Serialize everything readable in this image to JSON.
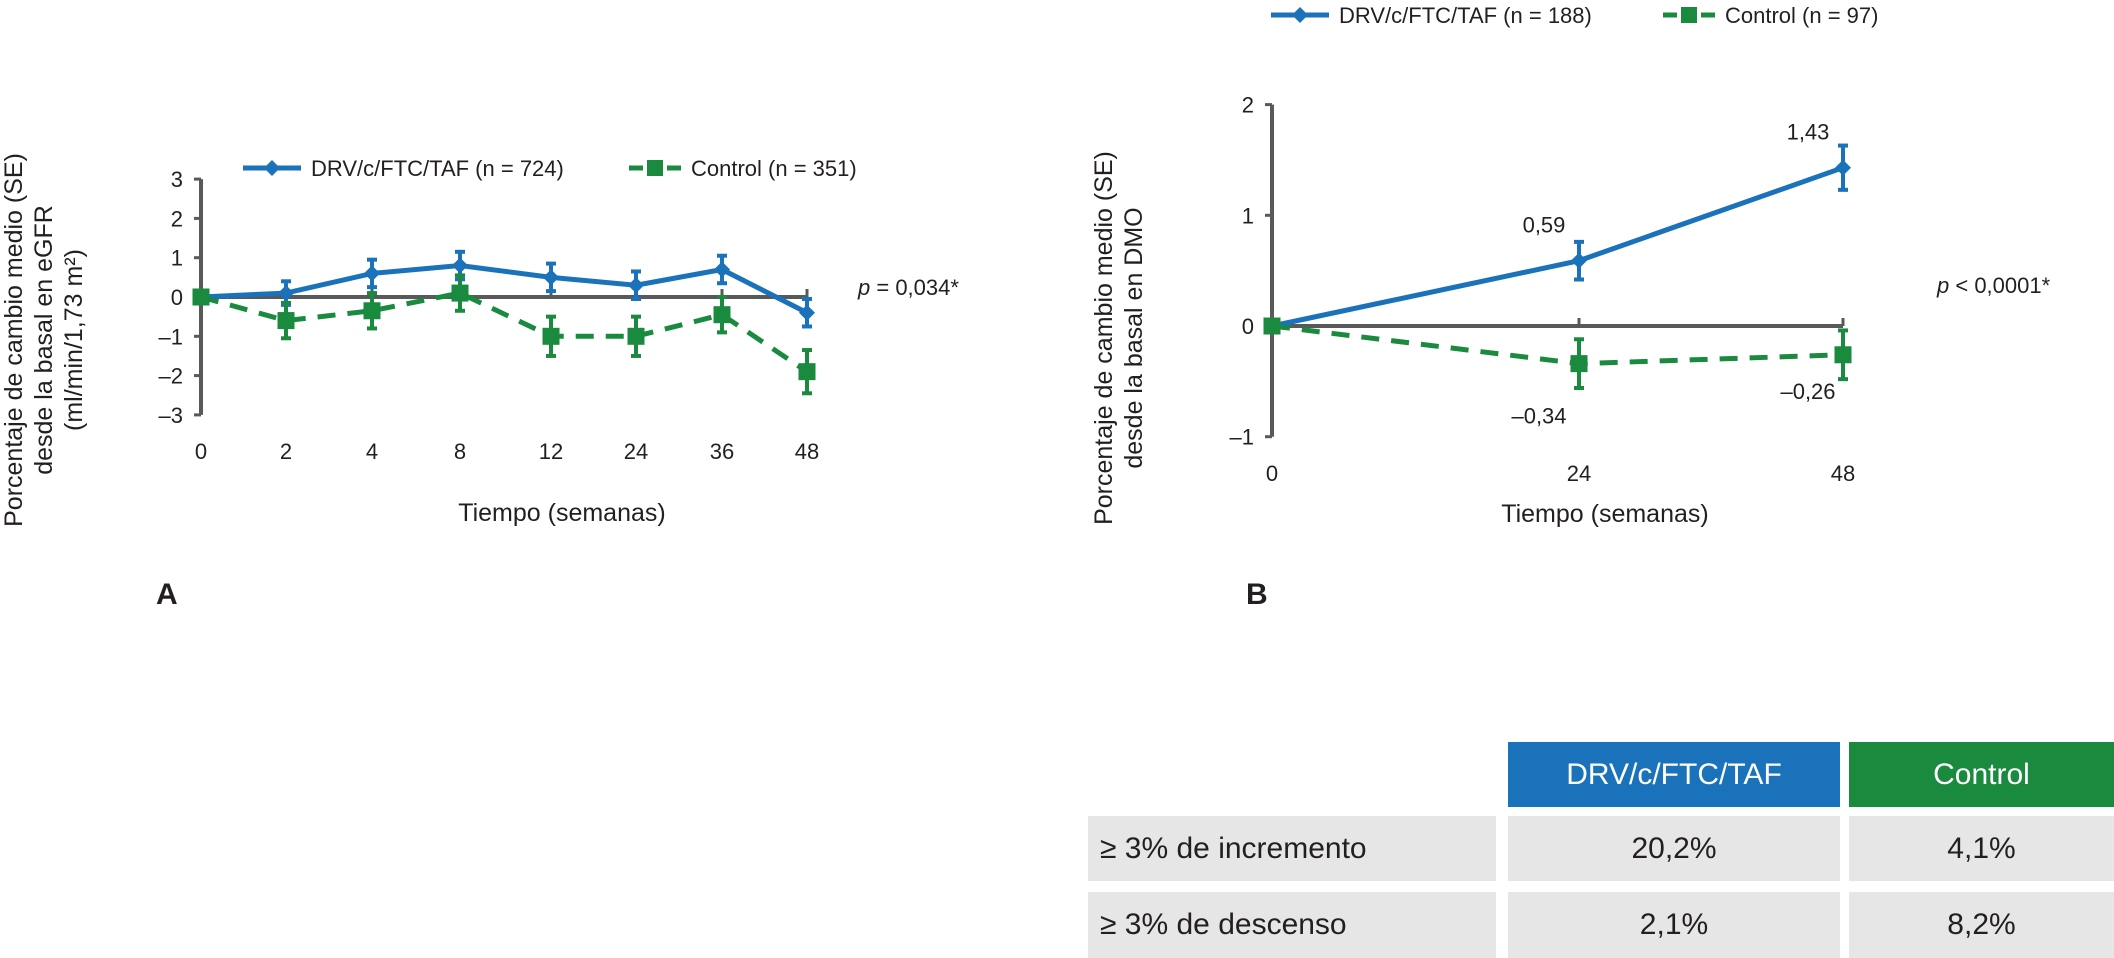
{
  "colors": {
    "drv": "#1a72bb",
    "control": "#1a8a3f",
    "axis": "#58595b",
    "cell": "#e6e6e6"
  },
  "panel_labels": {
    "a": "A",
    "b": "B"
  },
  "chart_data": [
    {
      "type": "line",
      "panel": "A",
      "title": "",
      "xlabel": "Tiempo (semanas)",
      "ylabel_lines": [
        "Porcentaje de cambio medio (SE)",
        "desde la basal en eGFR",
        "(ml/min/1,73 m²)"
      ],
      "categories": [
        "0",
        "2",
        "4",
        "8",
        "12",
        "24",
        "36",
        "48"
      ],
      "yticks": [
        "3",
        "2",
        "1",
        "0",
        "–1",
        "–2",
        "–3"
      ],
      "ytick_values": [
        3,
        2,
        1,
        0,
        -1,
        -2,
        -3
      ],
      "ylim": [
        -3,
        3
      ],
      "grid": false,
      "legend_position": "top",
      "annotation": {
        "italic": "p",
        "text": " = 0,034*"
      },
      "series": [
        {
          "name": "DRV/c/FTC/TAF (n = 724)",
          "style": "solid-diamond",
          "values": [
            0.0,
            0.1,
            0.6,
            0.8,
            0.5,
            0.3,
            0.7,
            -0.4
          ],
          "se": [
            0.0,
            0.3,
            0.35,
            0.35,
            0.35,
            0.35,
            0.35,
            0.35
          ]
        },
        {
          "name": "Control (n = 351)",
          "style": "dashed-square",
          "values": [
            0.0,
            -0.6,
            -0.35,
            0.1,
            -1.0,
            -1.0,
            -0.45,
            -1.9
          ],
          "se": [
            0.0,
            0.45,
            0.45,
            0.45,
            0.5,
            0.5,
            0.45,
            0.55
          ]
        }
      ]
    },
    {
      "type": "line",
      "panel": "B",
      "title": "",
      "xlabel": "Tiempo (semanas)",
      "ylabel_lines": [
        "Porcentaje de cambio medio (SE)",
        "desde la basal en DMO"
      ],
      "categories": [
        "0",
        "24",
        "48"
      ],
      "yticks": [
        "2",
        "1",
        "0",
        "–1"
      ],
      "ytick_values": [
        2,
        1,
        0,
        -1
      ],
      "ylim": [
        -1,
        2
      ],
      "grid": false,
      "legend_position": "top",
      "annotation": {
        "italic": "p",
        "text": " < 0,0001*"
      },
      "series": [
        {
          "name": "DRV/c/FTC/TAF (n = 188)",
          "style": "solid-diamond",
          "values": [
            0,
            0.59,
            1.43
          ],
          "se": [
            0,
            0.17,
            0.2
          ],
          "labels": [
            "",
            "0,59",
            "1,43"
          ]
        },
        {
          "name": "Control (n = 97)",
          "style": "dashed-square",
          "values": [
            0,
            -0.34,
            -0.26
          ],
          "se": [
            0,
            0.22,
            0.22
          ],
          "labels": [
            "",
            "–0,34",
            "–0,26"
          ]
        }
      ]
    }
  ],
  "table": {
    "headers": [
      "",
      "DRV/c/FTC/TAF",
      "Control"
    ],
    "rows": [
      {
        "label": "≥ 3% de incremento",
        "drv": "20,2%",
        "control": "4,1%"
      },
      {
        "label": "≥ 3% de descenso",
        "drv": "2,1%",
        "control": "8,2%"
      }
    ]
  }
}
